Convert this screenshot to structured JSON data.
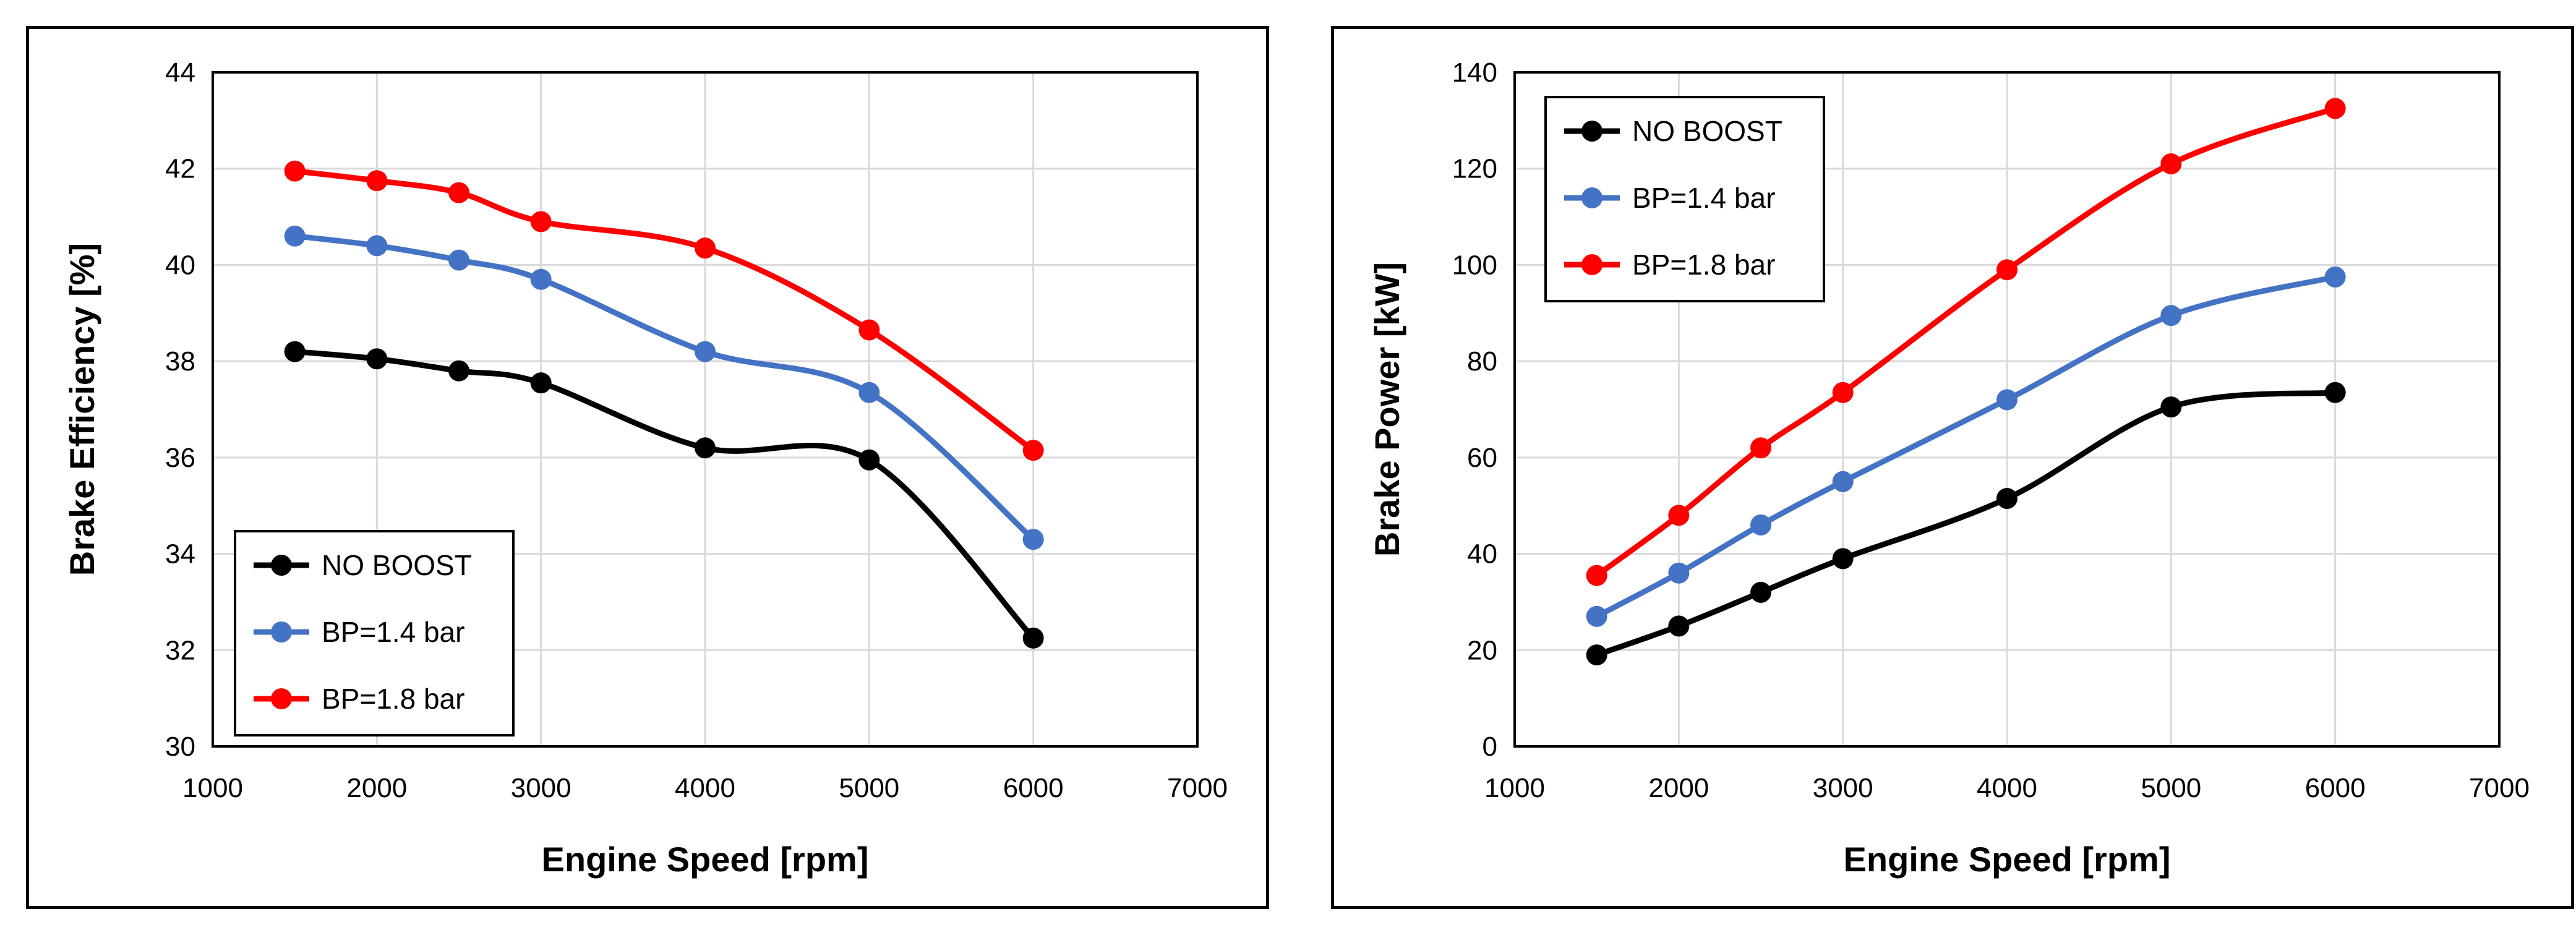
{
  "chart_data": [
    {
      "type": "line",
      "title": "",
      "xlabel": "Engine Speed [rpm]",
      "ylabel": "Brake Efficiency [%]",
      "xlim": [
        1000,
        7000
      ],
      "ylim": [
        30,
        44
      ],
      "xticks": [
        1000,
        2000,
        3000,
        4000,
        5000,
        6000,
        7000
      ],
      "yticks": [
        30,
        32,
        34,
        36,
        38,
        40,
        42,
        44
      ],
      "grid": true,
      "legend": "bottom-left",
      "x": [
        1500,
        2000,
        2500,
        3000,
        4000,
        5000,
        6000
      ],
      "series": [
        {
          "name": "NO BOOST",
          "color": "#000000",
          "values": [
            38.2,
            38.05,
            37.8,
            37.55,
            36.2,
            35.95,
            32.25
          ]
        },
        {
          "name": "BP=1.4 bar",
          "color": "#4472C4",
          "values": [
            40.6,
            40.4,
            40.1,
            39.7,
            38.2,
            37.35,
            34.3
          ]
        },
        {
          "name": "BP=1.8 bar",
          "color": "#FF0000",
          "values": [
            41.95,
            41.75,
            41.5,
            40.9,
            40.35,
            38.65,
            36.15
          ]
        }
      ]
    },
    {
      "type": "line",
      "title": "",
      "xlabel": "Engine Speed [rpm]",
      "ylabel": "Brake Power [kW]",
      "xlim": [
        1000,
        7000
      ],
      "ylim": [
        0,
        140
      ],
      "xticks": [
        1000,
        2000,
        3000,
        4000,
        5000,
        6000,
        7000
      ],
      "yticks": [
        0,
        20,
        40,
        60,
        80,
        100,
        120,
        140
      ],
      "grid": true,
      "legend": "top-left",
      "x": [
        1500,
        2000,
        2500,
        3000,
        4000,
        5000,
        6000
      ],
      "series": [
        {
          "name": "NO BOOST",
          "color": "#000000",
          "values": [
            19,
            25,
            32,
            39,
            51.5,
            70.5,
            73.5
          ]
        },
        {
          "name": "BP=1.4 bar",
          "color": "#4472C4",
          "values": [
            27,
            36,
            46,
            55,
            72,
            89.5,
            97.5
          ]
        },
        {
          "name": "BP=1.8 bar",
          "color": "#FF0000",
          "values": [
            35.5,
            48,
            62,
            73.5,
            99,
            121,
            132.5
          ]
        }
      ]
    }
  ]
}
